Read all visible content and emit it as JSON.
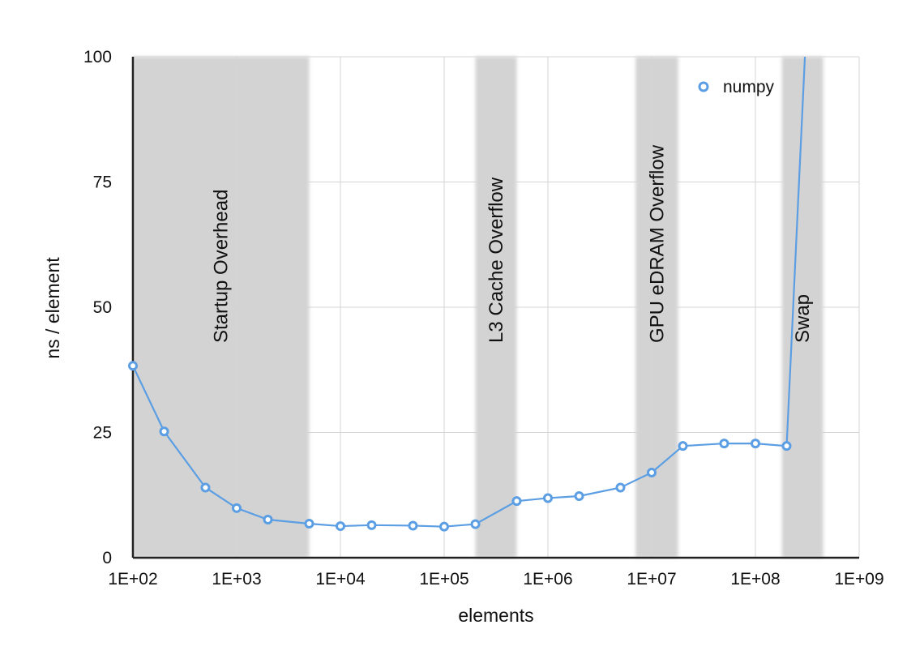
{
  "chart_data": {
    "type": "line",
    "title": "",
    "xlabel": "elements",
    "ylabel": "ns / element",
    "x_scale": "log",
    "xlim": [
      100,
      1000000000
    ],
    "ylim": [
      0,
      100
    ],
    "x_ticks": [
      {
        "value": 100,
        "label": "1E+02"
      },
      {
        "value": 1000,
        "label": "1E+03"
      },
      {
        "value": 10000,
        "label": "1E+04"
      },
      {
        "value": 100000,
        "label": "1E+05"
      },
      {
        "value": 1000000,
        "label": "1E+06"
      },
      {
        "value": 10000000,
        "label": "1E+07"
      },
      {
        "value": 100000000,
        "label": "1E+08"
      },
      {
        "value": 1000000000,
        "label": "1E+09"
      }
    ],
    "y_ticks": [
      {
        "value": 0,
        "label": "0"
      },
      {
        "value": 25,
        "label": "25"
      },
      {
        "value": 50,
        "label": "50"
      },
      {
        "value": 75,
        "label": "75"
      },
      {
        "value": 100,
        "label": "100"
      }
    ],
    "grid": true,
    "legend_position": "top-right",
    "regions": [
      {
        "label": "Startup Overhead",
        "from": 100,
        "to": 5000
      },
      {
        "label": "L3 Cache Overflow",
        "from": 200000,
        "to": 500000
      },
      {
        "label": "GPU eDRAM Overflow",
        "from": 7000000,
        "to": 18000000
      },
      {
        "label": "Swap",
        "from": 180000000,
        "to": 450000000
      }
    ],
    "series": [
      {
        "name": "numpy",
        "color": "#5b9ee3",
        "x": [
          100,
          200,
          500,
          1000,
          2000,
          5000,
          10000,
          20000,
          50000,
          100000,
          200000,
          500000,
          1000000,
          2000000,
          5000000,
          10000000,
          20000000,
          50000000,
          100000000,
          200000000
        ],
        "y": [
          38.3,
          25.2,
          14.0,
          9.9,
          7.6,
          6.8,
          6.3,
          6.5,
          6.4,
          6.2,
          6.7,
          11.3,
          11.9,
          12.3,
          14.0,
          17.0,
          22.3,
          22.8,
          22.8,
          22.3
        ]
      }
    ],
    "series_continuation": {
      "x": 300000000,
      "y": 100
    }
  },
  "colors": {
    "series": "#5b9ee3",
    "region_fill": "#d3d3d3",
    "grid": "#d4d4d4",
    "axis": "#222222"
  }
}
